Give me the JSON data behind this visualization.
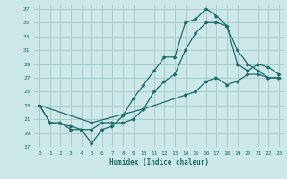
{
  "xlabel": "Humidex (Indice chaleur)",
  "bg_color": "#cce8e8",
  "grid_color": "#aacccc",
  "line_color": "#1a6b6b",
  "xlim": [
    -0.5,
    23.5
  ],
  "ylim": [
    17,
    37.5
  ],
  "xticks": [
    0,
    1,
    2,
    3,
    4,
    5,
    6,
    7,
    8,
    9,
    10,
    11,
    12,
    13,
    14,
    15,
    16,
    17,
    18,
    19,
    20,
    21,
    22,
    23
  ],
  "yticks": [
    17,
    19,
    21,
    23,
    25,
    27,
    29,
    31,
    33,
    35,
    37
  ],
  "line1_x": [
    0,
    1,
    2,
    3,
    4,
    5,
    6,
    7,
    8,
    9,
    10,
    11,
    12,
    13,
    14,
    15,
    16,
    17,
    18,
    19,
    20,
    21,
    22,
    23
  ],
  "line1_y": [
    23,
    20.5,
    20.5,
    19.5,
    19.5,
    17.5,
    19.5,
    20.0,
    21.5,
    24.0,
    26.0,
    28.0,
    30.0,
    30.0,
    35.0,
    35.5,
    37.0,
    36.0,
    34.5,
    31.0,
    29.0,
    28.0,
    27.0,
    27.0
  ],
  "line2_x": [
    0,
    1,
    3,
    4,
    5,
    6,
    7,
    8,
    9,
    10,
    11,
    12,
    13,
    14,
    15,
    16,
    17,
    18,
    19,
    20,
    21,
    22,
    23
  ],
  "line2_y": [
    23,
    20.5,
    20.0,
    19.5,
    19.5,
    20.5,
    20.5,
    20.5,
    21.0,
    22.5,
    25.0,
    26.5,
    27.5,
    31.0,
    33.5,
    35.0,
    35.0,
    34.5,
    29.0,
    28.0,
    29.0,
    28.5,
    27.5
  ],
  "line3_x": [
    0,
    5,
    10,
    14,
    15,
    16,
    17,
    18,
    19,
    20,
    21,
    22,
    23
  ],
  "line3_y": [
    23,
    20.5,
    22.5,
    24.5,
    25.0,
    26.5,
    27.0,
    26.0,
    26.5,
    27.5,
    27.5,
    27.0,
    27.0
  ]
}
